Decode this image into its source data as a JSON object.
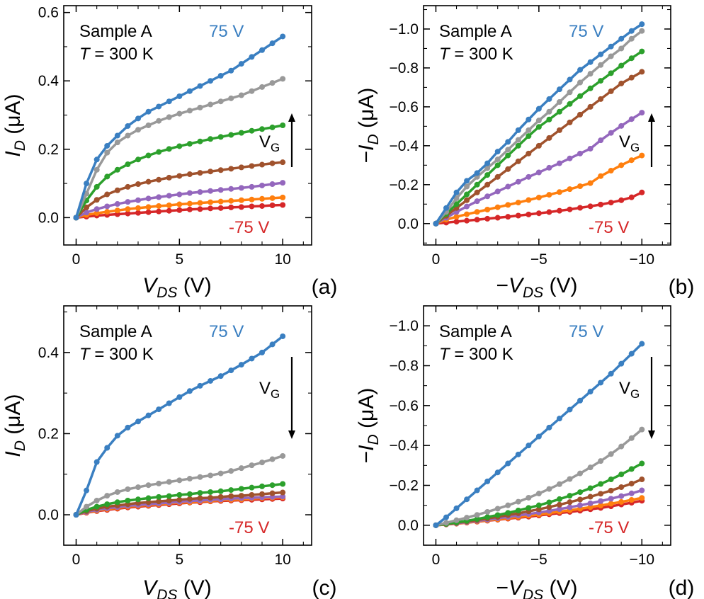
{
  "chart_data": [
    {
      "panel": "(a)",
      "type": "line",
      "sample": "Sample A",
      "temperature_label": "T",
      "temperature_value": " = 300 K",
      "top_label": "75 V",
      "bottom_label": "-75 V",
      "vg_label": "V",
      "vg_sub": "G",
      "vg_arrow": "up",
      "x_sign": "",
      "x_var": "V",
      "x_sub": "DS",
      "x_unit": "(V)",
      "y_sign": "",
      "y_var": "I",
      "y_sub": "D",
      "y_unit": "(μA)",
      "xlim": [
        -0.6,
        11.4
      ],
      "ylim": [
        -0.08,
        0.62
      ],
      "xticks": [
        0,
        5,
        10
      ],
      "xtick_labels": [
        "0",
        "5",
        "10"
      ],
      "yticks": [
        0,
        0.2,
        0.4,
        0.6
      ],
      "ytick_labels": [
        "0.0",
        "0.2",
        "0.4",
        "0.6"
      ],
      "x": [
        0,
        0.5,
        1,
        1.5,
        2,
        2.5,
        3,
        3.5,
        4,
        4.5,
        5,
        5.5,
        6,
        6.5,
        7,
        7.5,
        8,
        8.5,
        9,
        9.5,
        10
      ],
      "series": [
        {
          "color": "#d62728",
          "values": [
            0,
            0.003,
            0.006,
            0.008,
            0.01,
            0.012,
            0.014,
            0.016,
            0.018,
            0.02,
            0.022,
            0.024,
            0.025,
            0.027,
            0.028,
            0.03,
            0.031,
            0.033,
            0.034,
            0.036,
            0.037
          ]
        },
        {
          "color": "#ff7f0e",
          "values": [
            0,
            0.008,
            0.013,
            0.017,
            0.021,
            0.025,
            0.028,
            0.031,
            0.034,
            0.036,
            0.039,
            0.041,
            0.043,
            0.045,
            0.047,
            0.049,
            0.051,
            0.053,
            0.055,
            0.057,
            0.059
          ]
        },
        {
          "color": "#9467bd",
          "values": [
            0,
            0.015,
            0.025,
            0.033,
            0.04,
            0.046,
            0.051,
            0.056,
            0.06,
            0.064,
            0.068,
            0.072,
            0.075,
            0.078,
            0.081,
            0.084,
            0.087,
            0.09,
            0.094,
            0.098,
            0.102
          ]
        },
        {
          "color": "#a0522d",
          "values": [
            0,
            0.03,
            0.052,
            0.068,
            0.08,
            0.09,
            0.098,
            0.105,
            0.111,
            0.117,
            0.122,
            0.127,
            0.131,
            0.135,
            0.139,
            0.143,
            0.147,
            0.151,
            0.155,
            0.159,
            0.162
          ]
        },
        {
          "color": "#2ca02c",
          "values": [
            0,
            0.05,
            0.09,
            0.12,
            0.14,
            0.156,
            0.17,
            0.182,
            0.192,
            0.201,
            0.209,
            0.216,
            0.223,
            0.23,
            0.236,
            0.242,
            0.248,
            0.254,
            0.259,
            0.264,
            0.27
          ]
        },
        {
          "color": "#999999",
          "values": [
            0,
            0.07,
            0.14,
            0.19,
            0.22,
            0.24,
            0.257,
            0.27,
            0.283,
            0.294,
            0.304,
            0.313,
            0.322,
            0.331,
            0.34,
            0.349,
            0.358,
            0.37,
            0.382,
            0.394,
            0.406
          ]
        },
        {
          "color": "#3a7fc1",
          "values": [
            0,
            0.1,
            0.17,
            0.21,
            0.24,
            0.268,
            0.29,
            0.31,
            0.325,
            0.34,
            0.355,
            0.37,
            0.385,
            0.4,
            0.415,
            0.43,
            0.45,
            0.47,
            0.49,
            0.51,
            0.53
          ]
        }
      ]
    },
    {
      "panel": "(b)",
      "type": "line",
      "sample": "Sample A",
      "temperature_label": "T",
      "temperature_value": " = 300 K",
      "top_label": "75 V",
      "bottom_label": "-75 V",
      "vg_label": "V",
      "vg_sub": "G",
      "vg_arrow": "up",
      "x_sign": "−",
      "x_var": "V",
      "x_sub": "DS",
      "x_unit": "(V)",
      "y_sign": "−",
      "y_var": "I",
      "y_sub": "D",
      "y_unit": "(μA)",
      "xlim": [
        0.6,
        -11.4
      ],
      "ylim": [
        0.11,
        -1.12
      ],
      "xticks": [
        0,
        -5,
        -10
      ],
      "xtick_labels": [
        "0",
        "−5",
        "−10"
      ],
      "yticks": [
        0,
        -0.2,
        -0.4,
        -0.6,
        -0.8,
        -1.0
      ],
      "ytick_labels": [
        "0.0",
        "−0.2",
        "−0.4",
        "−0.6",
        "−0.8",
        "−1.0"
      ],
      "x": [
        0,
        -0.5,
        -1,
        -1.5,
        -2,
        -2.5,
        -3,
        -3.5,
        -4,
        -4.5,
        -5,
        -5.5,
        -6,
        -6.5,
        -7,
        -7.5,
        -8,
        -8.5,
        -9,
        -9.5,
        -10
      ],
      "series": [
        {
          "color": "#d62728",
          "values": [
            0,
            -0.005,
            -0.01,
            -0.015,
            -0.02,
            -0.025,
            -0.03,
            -0.035,
            -0.041,
            -0.047,
            -0.053,
            -0.059,
            -0.066,
            -0.073,
            -0.081,
            -0.089,
            -0.098,
            -0.108,
            -0.12,
            -0.135,
            -0.16
          ]
        },
        {
          "color": "#ff7f0e",
          "values": [
            0,
            -0.02,
            -0.035,
            -0.048,
            -0.06,
            -0.072,
            -0.084,
            -0.096,
            -0.108,
            -0.121,
            -0.134,
            -0.148,
            -0.162,
            -0.177,
            -0.192,
            -0.208,
            -0.244,
            -0.272,
            -0.3,
            -0.326,
            -0.35
          ]
        },
        {
          "color": "#9467bd",
          "values": [
            0,
            -0.03,
            -0.06,
            -0.088,
            -0.115,
            -0.14,
            -0.165,
            -0.19,
            -0.215,
            -0.24,
            -0.263,
            -0.287,
            -0.31,
            -0.335,
            -0.36,
            -0.385,
            -0.428,
            -0.466,
            -0.502,
            -0.537,
            -0.57
          ]
        },
        {
          "color": "#a0522d",
          "values": [
            0,
            -0.04,
            -0.08,
            -0.12,
            -0.16,
            -0.2,
            -0.24,
            -0.28,
            -0.32,
            -0.36,
            -0.4,
            -0.44,
            -0.48,
            -0.52,
            -0.56,
            -0.6,
            -0.64,
            -0.68,
            -0.72,
            -0.75,
            -0.78
          ]
        },
        {
          "color": "#2ca02c",
          "values": [
            0,
            -0.05,
            -0.1,
            -0.15,
            -0.2,
            -0.25,
            -0.3,
            -0.35,
            -0.4,
            -0.45,
            -0.497,
            -0.535,
            -0.575,
            -0.615,
            -0.655,
            -0.695,
            -0.734,
            -0.773,
            -0.812,
            -0.85,
            -0.885
          ]
        },
        {
          "color": "#999999",
          "values": [
            0,
            -0.06,
            -0.13,
            -0.19,
            -0.24,
            -0.285,
            -0.33,
            -0.38,
            -0.43,
            -0.48,
            -0.53,
            -0.575,
            -0.625,
            -0.675,
            -0.725,
            -0.77,
            -0.815,
            -0.86,
            -0.9,
            -0.95,
            -0.99
          ]
        },
        {
          "color": "#3a7fc1",
          "values": [
            0,
            -0.08,
            -0.16,
            -0.22,
            -0.26,
            -0.31,
            -0.37,
            -0.42,
            -0.48,
            -0.535,
            -0.59,
            -0.64,
            -0.69,
            -0.74,
            -0.79,
            -0.83,
            -0.87,
            -0.91,
            -0.95,
            -0.99,
            -1.025
          ]
        }
      ]
    },
    {
      "panel": "(c)",
      "type": "line",
      "sample": "Sample A",
      "temperature_label": "T",
      "temperature_value": " = 300 K",
      "top_label": "75 V",
      "bottom_label": "-75 V",
      "vg_label": "V",
      "vg_sub": "G",
      "vg_arrow": "down",
      "x_sign": "",
      "x_var": "V",
      "x_sub": "DS",
      "x_unit": "(V)",
      "y_sign": "",
      "y_var": "I",
      "y_sub": "D",
      "y_unit": "(μA)",
      "xlim": [
        -0.6,
        11.4
      ],
      "ylim": [
        -0.075,
        0.515
      ],
      "xticks": [
        0,
        5,
        10
      ],
      "xtick_labels": [
        "0",
        "5",
        "10"
      ],
      "yticks": [
        0,
        0.2,
        0.4
      ],
      "ytick_labels": [
        "0.0",
        "0.2",
        "0.4"
      ],
      "x": [
        0,
        0.5,
        1,
        1.5,
        2,
        2.5,
        3,
        3.5,
        4,
        4.5,
        5,
        5.5,
        6,
        6.5,
        7,
        7.5,
        8,
        8.5,
        9,
        9.5,
        10
      ],
      "series": [
        {
          "color": "#d62728",
          "values": [
            0,
            0.005,
            0.009,
            0.012,
            0.015,
            0.018,
            0.02,
            0.022,
            0.024,
            0.026,
            0.028,
            0.03,
            0.031,
            0.033,
            0.034,
            0.035,
            0.036,
            0.037,
            0.038,
            0.039,
            0.04
          ]
        },
        {
          "color": "#ff7f0e",
          "values": [
            0,
            0.006,
            0.01,
            0.014,
            0.017,
            0.02,
            0.022,
            0.024,
            0.026,
            0.028,
            0.03,
            0.031,
            0.033,
            0.034,
            0.036,
            0.037,
            0.038,
            0.04,
            0.041,
            0.042,
            0.043
          ]
        },
        {
          "color": "#9467bd",
          "values": [
            0,
            0.007,
            0.012,
            0.016,
            0.019,
            0.022,
            0.024,
            0.026,
            0.028,
            0.03,
            0.032,
            0.034,
            0.035,
            0.037,
            0.038,
            0.04,
            0.041,
            0.042,
            0.043,
            0.044,
            0.045
          ]
        },
        {
          "color": "#a0522d",
          "values": [
            0,
            0.009,
            0.015,
            0.02,
            0.023,
            0.026,
            0.029,
            0.031,
            0.033,
            0.035,
            0.037,
            0.039,
            0.041,
            0.042,
            0.044,
            0.046,
            0.047,
            0.049,
            0.051,
            0.053,
            0.055
          ]
        },
        {
          "color": "#2ca02c",
          "values": [
            0,
            0.012,
            0.02,
            0.026,
            0.031,
            0.035,
            0.038,
            0.041,
            0.044,
            0.046,
            0.049,
            0.051,
            0.054,
            0.056,
            0.058,
            0.061,
            0.064,
            0.067,
            0.07,
            0.073,
            0.076
          ]
        },
        {
          "color": "#999999",
          "values": [
            0,
            0.02,
            0.035,
            0.047,
            0.056,
            0.063,
            0.068,
            0.073,
            0.077,
            0.081,
            0.085,
            0.089,
            0.093,
            0.097,
            0.102,
            0.108,
            0.115,
            0.122,
            0.129,
            0.137,
            0.145
          ]
        },
        {
          "color": "#3a7fc1",
          "values": [
            0,
            0.06,
            0.13,
            0.165,
            0.195,
            0.215,
            0.23,
            0.245,
            0.26,
            0.275,
            0.29,
            0.305,
            0.318,
            0.33,
            0.342,
            0.356,
            0.37,
            0.385,
            0.4,
            0.42,
            0.44
          ]
        }
      ]
    },
    {
      "panel": "(d)",
      "type": "line",
      "sample": "Sample A",
      "temperature_label": "T",
      "temperature_value": " = 300 K",
      "top_label": "75 V",
      "bottom_label": "-75 V",
      "vg_label": "V",
      "vg_sub": "G",
      "vg_arrow": "down",
      "x_sign": "−",
      "x_var": "V",
      "x_sub": "DS",
      "x_unit": "(V)",
      "y_sign": "−",
      "y_var": "I",
      "y_sub": "D",
      "y_unit": "(μA)",
      "xlim": [
        0.6,
        -11.4
      ],
      "ylim": [
        0.1,
        -1.1
      ],
      "xticks": [
        0,
        -5,
        -10
      ],
      "xtick_labels": [
        "0",
        "−5",
        "−10"
      ],
      "yticks": [
        0,
        -0.2,
        -0.4,
        -0.6,
        -0.8,
        -1.0
      ],
      "ytick_labels": [
        "0.0",
        "−0.2",
        "−0.4",
        "−0.6",
        "−0.8",
        "−1.0"
      ],
      "x": [
        0,
        -0.5,
        -1,
        -1.5,
        -2,
        -2.5,
        -3,
        -3.5,
        -4,
        -4.5,
        -5,
        -5.5,
        -6,
        -6.5,
        -7,
        -7.5,
        -8,
        -8.5,
        -9,
        -9.5,
        -10
      ],
      "series": [
        {
          "color": "#d62728",
          "values": [
            0,
            -0.004,
            -0.008,
            -0.013,
            -0.018,
            -0.023,
            -0.028,
            -0.033,
            -0.038,
            -0.043,
            -0.049,
            -0.055,
            -0.061,
            -0.067,
            -0.073,
            -0.08,
            -0.087,
            -0.095,
            -0.104,
            -0.113,
            -0.123
          ]
        },
        {
          "color": "#ff7f0e",
          "values": [
            0,
            -0.004,
            -0.009,
            -0.014,
            -0.019,
            -0.024,
            -0.03,
            -0.036,
            -0.042,
            -0.048,
            -0.054,
            -0.061,
            -0.068,
            -0.075,
            -0.083,
            -0.091,
            -0.099,
            -0.108,
            -0.117,
            -0.127,
            -0.137
          ]
        },
        {
          "color": "#9467bd",
          "values": [
            0,
            -0.005,
            -0.01,
            -0.016,
            -0.022,
            -0.028,
            -0.035,
            -0.042,
            -0.049,
            -0.056,
            -0.064,
            -0.072,
            -0.081,
            -0.09,
            -0.1,
            -0.11,
            -0.121,
            -0.133,
            -0.146,
            -0.16,
            -0.175
          ]
        },
        {
          "color": "#a0522d",
          "values": [
            0,
            -0.006,
            -0.012,
            -0.019,
            -0.026,
            -0.034,
            -0.042,
            -0.051,
            -0.06,
            -0.07,
            -0.08,
            -0.091,
            -0.103,
            -0.116,
            -0.129,
            -0.143,
            -0.158,
            -0.174,
            -0.191,
            -0.209,
            -0.23
          ]
        },
        {
          "color": "#2ca02c",
          "values": [
            0,
            -0.007,
            -0.014,
            -0.022,
            -0.031,
            -0.041,
            -0.051,
            -0.062,
            -0.074,
            -0.087,
            -0.1,
            -0.115,
            -0.131,
            -0.148,
            -0.166,
            -0.186,
            -0.207,
            -0.23,
            -0.255,
            -0.282,
            -0.31
          ]
        },
        {
          "color": "#999999",
          "values": [
            0,
            -0.012,
            -0.025,
            -0.038,
            -0.052,
            -0.067,
            -0.083,
            -0.1,
            -0.118,
            -0.138,
            -0.159,
            -0.182,
            -0.206,
            -0.232,
            -0.26,
            -0.29,
            -0.322,
            -0.357,
            -0.395,
            -0.437,
            -0.48
          ]
        },
        {
          "color": "#3a7fc1",
          "values": [
            0,
            -0.04,
            -0.085,
            -0.13,
            -0.175,
            -0.22,
            -0.265,
            -0.31,
            -0.355,
            -0.4,
            -0.445,
            -0.49,
            -0.535,
            -0.58,
            -0.625,
            -0.67,
            -0.715,
            -0.76,
            -0.81,
            -0.86,
            -0.91
          ]
        }
      ]
    }
  ]
}
